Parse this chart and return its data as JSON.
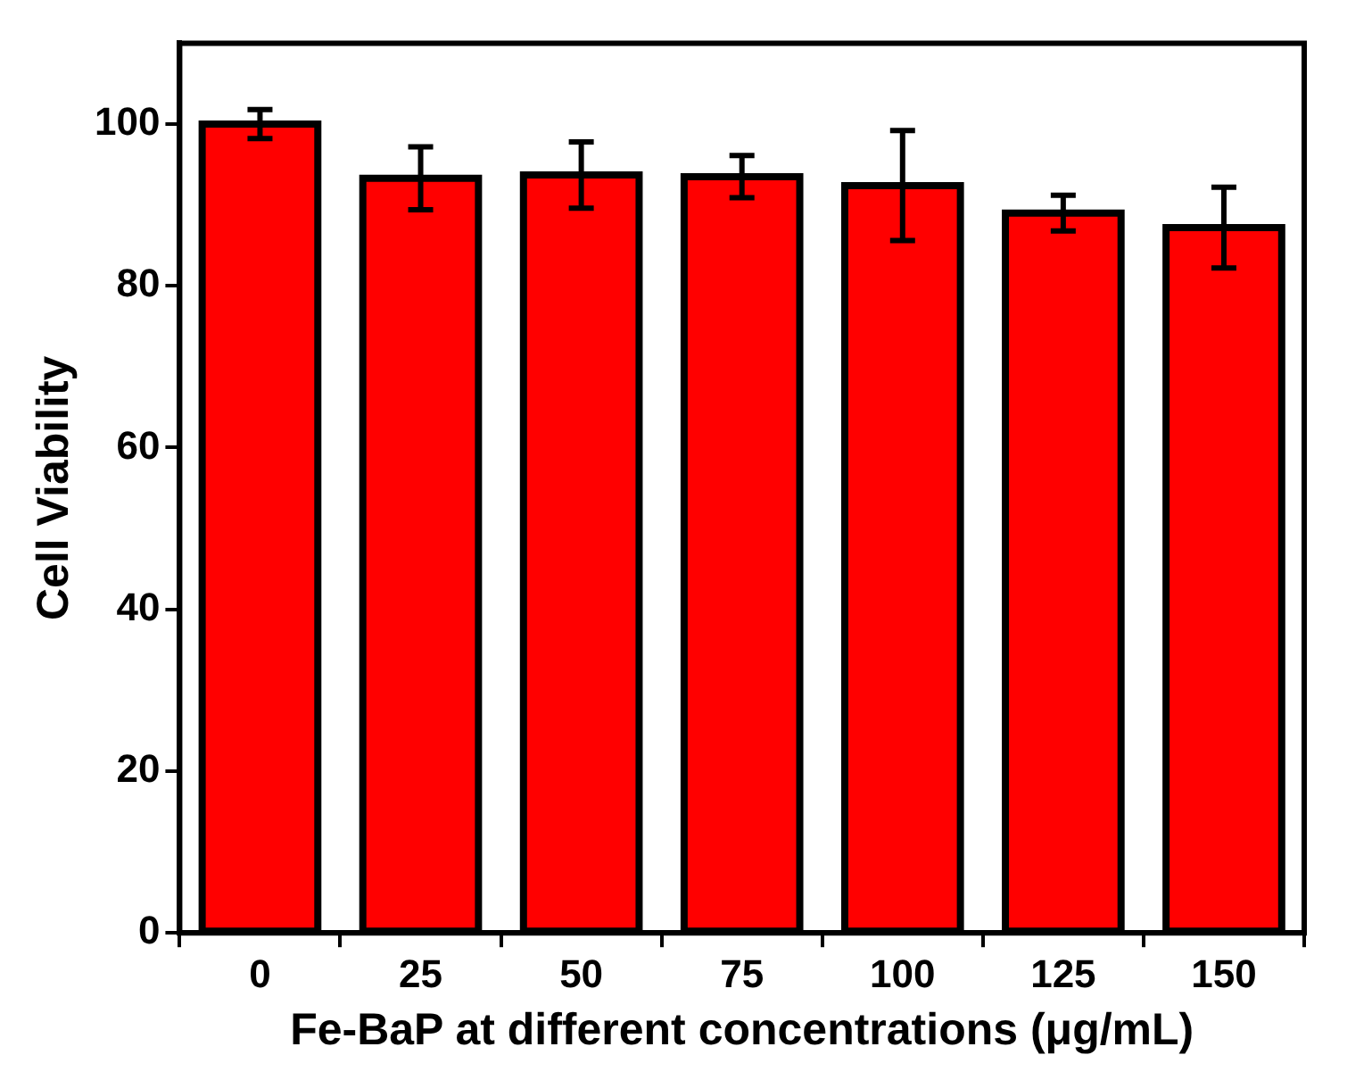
{
  "chart_data": {
    "type": "bar",
    "xlabel": "Fe-BaP at different concentrations (μg/mL)",
    "ylabel": "Cell Viability",
    "categories": [
      "0",
      "25",
      "50",
      "75",
      "100",
      "125",
      "150"
    ],
    "values": [
      100,
      93.3,
      93.7,
      93.5,
      92.4,
      89.0,
      87.2
    ],
    "errors": [
      1.8,
      3.9,
      4.1,
      2.6,
      6.8,
      2.2,
      5.0
    ],
    "color": "#ff0000",
    "ylim": [
      0,
      110
    ],
    "yticks": [
      0,
      20,
      40,
      60,
      80,
      100
    ],
    "grid": false,
    "legend": false
  }
}
